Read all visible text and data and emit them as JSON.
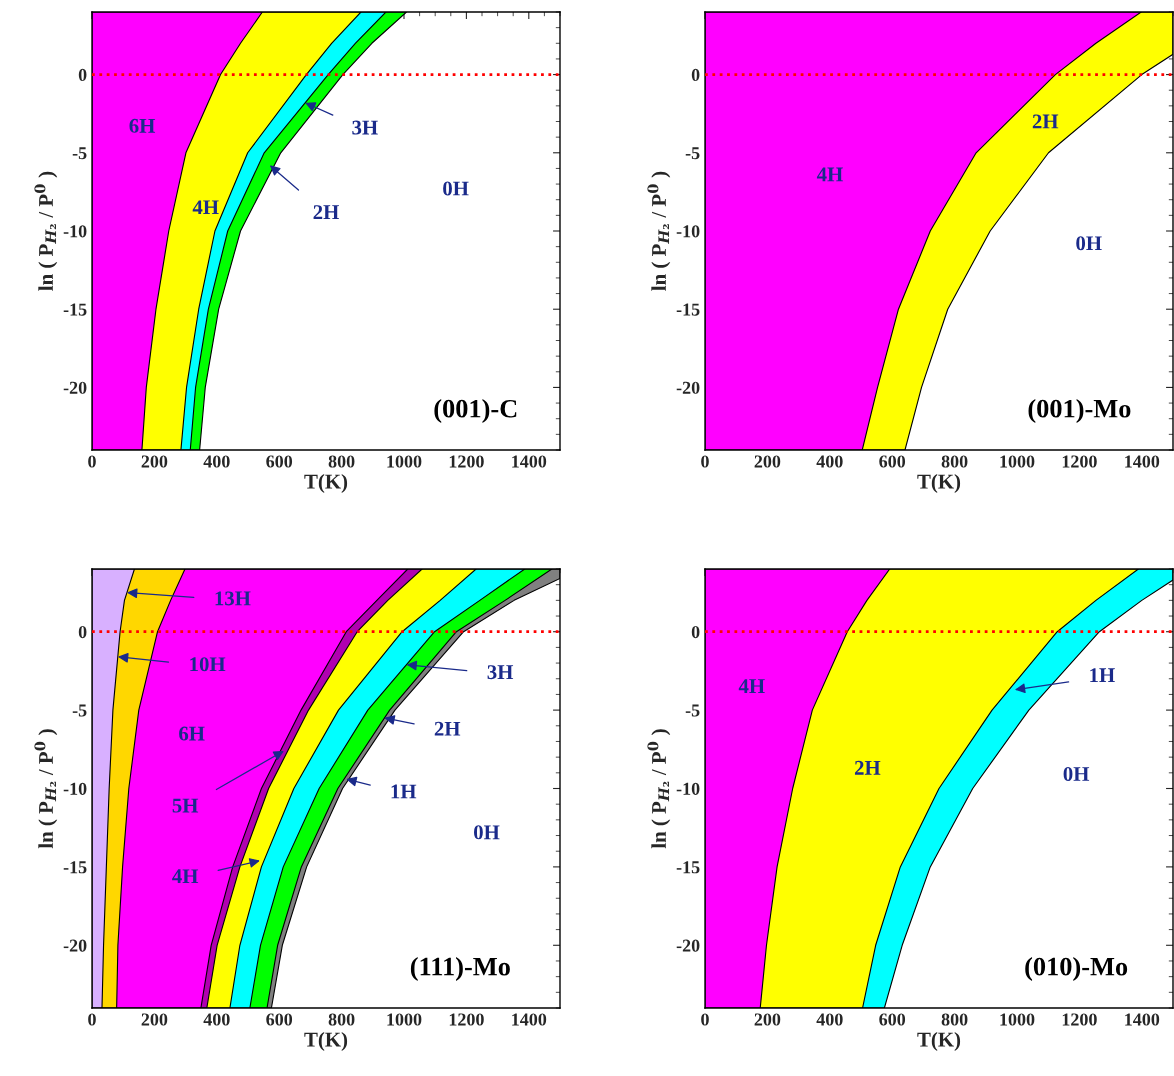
{
  "chart_data": [
    {
      "type": "area",
      "orientation": "horizontal",
      "xlabel": "T(K)",
      "ylabel": "ln ( P$_{H₂}$ / P$^{0}$ )",
      "xlim": [
        0,
        1500
      ],
      "ylim": [
        -24,
        4
      ],
      "xticks": [
        0,
        200,
        400,
        600,
        800,
        1000,
        1200,
        1400
      ],
      "yticks": [
        -20,
        -15,
        -10,
        -5,
        0
      ],
      "series": [
        {
          "color": "#ff00ff",
          "values": [
            160,
            174,
            205,
            246,
            301,
            412,
            476,
            546
          ],
          "x": [
            -24,
            -20,
            -15,
            -10,
            -5,
            0,
            2,
            4
          ]
        },
        {
          "color": "#ffff00",
          "values": [
            285,
            303,
            342,
            394,
            499,
            687,
            768,
            862
          ],
          "x": [
            -24,
            -20,
            -15,
            -10,
            -5,
            0,
            2,
            4
          ]
        },
        {
          "color": "#00ffff",
          "values": [
            315,
            332,
            373,
            435,
            552,
            757,
            844,
            942
          ],
          "x": [
            -24,
            -20,
            -15,
            -10,
            -5,
            0,
            2,
            4
          ]
        },
        {
          "color": "#00ff00",
          "values": [
            345,
            363,
            406,
            476,
            605,
            804,
            897,
            1008
          ],
          "x": [
            -24,
            -20,
            -15,
            -10,
            -5,
            0,
            2,
            4
          ]
        }
      ],
      "ref_lines": [
        {
          "axis": "y",
          "value": 0,
          "color": "#ff0000",
          "line_style": "dotted"
        }
      ],
      "annotations": [
        "6H",
        "4H",
        {
          "text": "3H",
          "x": 683,
          "y": -1.8
        },
        {
          "text": "2H",
          "x": 570,
          "y": -5.8
        },
        "0H",
        "(001)-C"
      ]
    },
    {
      "type": "area",
      "orientation": "horizontal",
      "xlabel": "T(K)",
      "ylabel": "ln ( P$_{H₂}$ / P$^{0}$ )",
      "xlim": [
        0,
        1500
      ],
      "ylim": [
        -24,
        4
      ],
      "xticks": [
        0,
        200,
        400,
        600,
        800,
        1000,
        1200,
        1400
      ],
      "yticks": [
        -20,
        -15,
        -10,
        -5,
        0
      ],
      "series": [
        {
          "color": "#ff00ff",
          "values": [
            504,
            553,
            620,
            722,
            869,
            1123,
            1253,
            1398
          ],
          "x": [
            -24,
            -20,
            -15,
            -10,
            -5,
            0,
            2,
            4
          ]
        },
        {
          "color": "#ffff00",
          "values": [
            641,
            694,
            778,
            914,
            1101,
            1400,
            1500,
            1500
          ],
          "x": [
            -24,
            -20,
            -15,
            -10,
            -5,
            0,
            1.3,
            4
          ]
        }
      ],
      "ref_lines": [
        {
          "axis": "y",
          "value": 0,
          "color": "#ff0000",
          "line_style": "dotted"
        }
      ],
      "annotations": [
        "4H",
        "2H",
        "0H",
        "(001)-Mo"
      ]
    },
    {
      "type": "area",
      "orientation": "horizontal",
      "xlabel": "T(K)",
      "ylabel": "ln ( P$_{H₂}$ / P$^{0}$ )",
      "xlim": [
        0,
        1500
      ],
      "ylim": [
        -24,
        4
      ],
      "xticks": [
        0,
        200,
        400,
        600,
        800,
        1000,
        1200,
        1400
      ],
      "yticks": [
        -20,
        -15,
        -10,
        -5,
        0
      ],
      "series": [
        {
          "color": "#d8b0ff",
          "values": [
            32,
            37,
            46,
            55,
            67,
            90,
            104,
            136
          ],
          "x": [
            -24,
            -20,
            -15,
            -10,
            -5,
            0,
            2,
            4
          ]
        },
        {
          "color": "#ffd700",
          "values": [
            79,
            83,
            98,
            118,
            150,
            210,
            252,
            298
          ],
          "x": [
            -24,
            -20,
            -15,
            -10,
            -5,
            0,
            2,
            4
          ]
        },
        {
          "color": "#ff00ff",
          "values": [
            349,
            382,
            451,
            543,
            670,
            815,
            913,
            1012
          ],
          "x": [
            -24,
            -20,
            -15,
            -10,
            -5,
            0,
            2,
            4
          ]
        },
        {
          "color": "#b000b0",
          "values": [
            368,
            401,
            474,
            566,
            694,
            850,
            948,
            1058
          ],
          "x": [
            -24,
            -20,
            -15,
            -10,
            -5,
            0,
            2,
            4
          ]
        },
        {
          "color": "#ffff00",
          "values": [
            442,
            474,
            543,
            647,
            790,
            994,
            1116,
            1231
          ],
          "x": [
            -24,
            -20,
            -15,
            -10,
            -5,
            0,
            2,
            4
          ]
        },
        {
          "color": "#00ffff",
          "values": [
            506,
            540,
            613,
            728,
            884,
            1098,
            1243,
            1387
          ],
          "x": [
            -24,
            -20,
            -15,
            -10,
            -5,
            0,
            2,
            4
          ]
        },
        {
          "color": "#00ff00",
          "values": [
            561,
            595,
            671,
            788,
            954,
            1168,
            1324,
            1474
          ],
          "x": [
            -24,
            -20,
            -15,
            -10,
            -5,
            0,
            2,
            4
          ]
        },
        {
          "color": "#808080",
          "values": [
            575,
            610,
            688,
            803,
            971,
            1191,
            1353,
            1500,
            1500
          ],
          "x": [
            -24,
            -20,
            -15,
            -10,
            -5,
            0,
            2,
            3.4,
            4
          ]
        }
      ],
      "ref_lines": [
        {
          "axis": "y",
          "value": 0,
          "color": "#ff0000",
          "line_style": "dotted"
        }
      ],
      "annotations": [
        {
          "text": "13H",
          "x": 112,
          "y": 2.5
        },
        {
          "text": "10H",
          "x": 83,
          "y": -1.6
        },
        "6H",
        {
          "text": "5H",
          "x": 615,
          "y": -7.6
        },
        {
          "text": "4H",
          "x": 538,
          "y": -14.6
        },
        {
          "text": "3H",
          "x": 1008,
          "y": -2.1
        },
        {
          "text": "2H",
          "x": 937,
          "y": -5.5
        },
        {
          "text": "1H",
          "x": 815,
          "y": -9.4
        },
        "0H",
        "(111)-Mo"
      ]
    },
    {
      "type": "area",
      "orientation": "horizontal",
      "xlabel": "T(K)",
      "ylabel": "ln ( P$_{H₂}$ / P$^{0}$ )",
      "xlim": [
        0,
        1500
      ],
      "ylim": [
        -24,
        4
      ],
      "xticks": [
        0,
        200,
        400,
        600,
        800,
        1000,
        1200,
        1400
      ],
      "yticks": [
        -20,
        -15,
        -10,
        -5,
        0
      ],
      "series": [
        {
          "color": "#ff00ff",
          "values": [
            177,
            197,
            231,
            281,
            344,
            456,
            519,
            592
          ],
          "x": [
            -24,
            -20,
            -15,
            -10,
            -5,
            0,
            2,
            4
          ]
        },
        {
          "color": "#ffff00",
          "values": [
            505,
            547,
            626,
            750,
            920,
            1129,
            1253,
            1389
          ],
          "x": [
            -24,
            -20,
            -15,
            -10,
            -5,
            0,
            2,
            4
          ]
        },
        {
          "color": "#00ffff",
          "values": [
            575,
            632,
            722,
            858,
            1038,
            1264,
            1400,
            1500,
            1500
          ],
          "x": [
            -24,
            -20,
            -15,
            -10,
            -5,
            0,
            2,
            3.3,
            4
          ]
        }
      ],
      "ref_lines": [
        {
          "axis": "y",
          "value": 0,
          "color": "#ff0000",
          "line_style": "dotted"
        }
      ],
      "annotations": [
        "4H",
        "2H",
        {
          "text": "1H",
          "x": 993,
          "y": -3.7
        },
        "0H",
        "(010)-Mo"
      ]
    }
  ]
}
